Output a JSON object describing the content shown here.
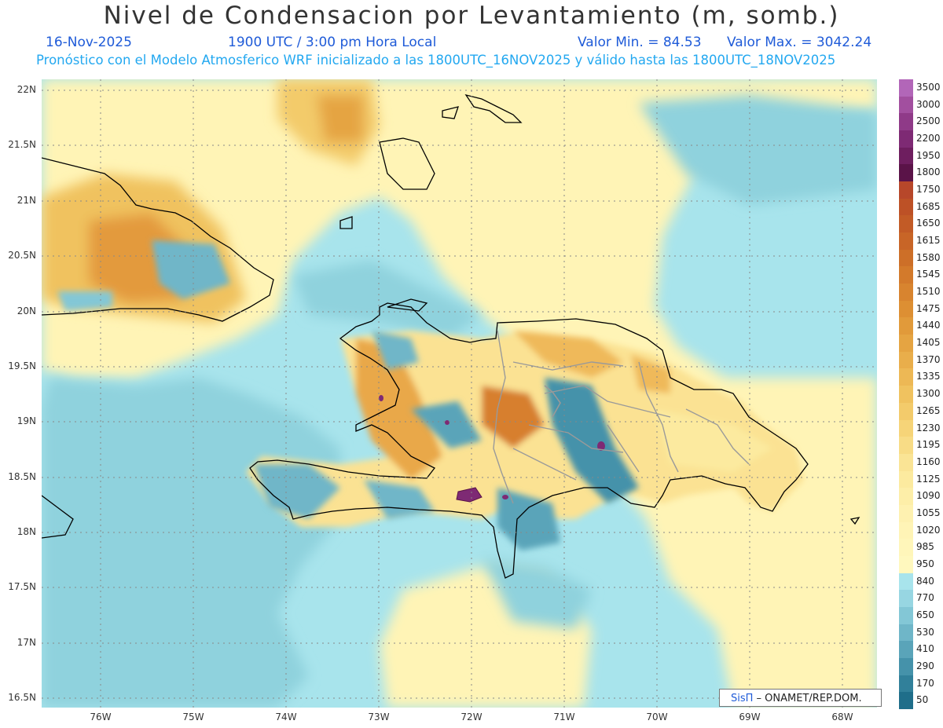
{
  "header": {
    "title": "Nivel de Condensacion por Levantamiento (m, somb.)",
    "date": "16-Nov-2025",
    "time": "1900 UTC / 3:00 pm Hora Local",
    "min": "Valor Min. = 84.53",
    "max": "Valor Max. = 3042.24",
    "forecast": "Pronóstico con el Modelo Atmosferico WRF inicializado a las 1800UTC_16NOV2025 y válido hasta las  1800UTC_18NOV2025"
  },
  "axes": {
    "lat_labels": [
      "22N",
      "21.5N",
      "21N",
      "20.5N",
      "20N",
      "19.5N",
      "19N",
      "18.5N",
      "18N",
      "17.5N",
      "17N",
      "16.5N"
    ],
    "lon_labels": [
      "76W",
      "75W",
      "74W",
      "73W",
      "72W",
      "71W",
      "70W",
      "69W",
      "68W"
    ]
  },
  "legend": {
    "levels": [
      "3500",
      "3000",
      "2500",
      "2200",
      "1950",
      "1800",
      "1750",
      "1685",
      "1650",
      "1615",
      "1580",
      "1545",
      "1510",
      "1475",
      "1440",
      "1405",
      "1370",
      "1335",
      "1300",
      "1265",
      "1230",
      "1195",
      "1160",
      "1125",
      "1090",
      "1055",
      "1020",
      "985",
      "950",
      "840",
      "770",
      "650",
      "530",
      "410",
      "290",
      "170",
      "50"
    ],
    "colors": [
      "#b266b8",
      "#a24f9f",
      "#8f3a88",
      "#7e2a74",
      "#6e1e5f",
      "#5a1348",
      "#b7472a",
      "#bd5126",
      "#c25b26",
      "#c86527",
      "#cd6f28",
      "#d37a2b",
      "#d8842f",
      "#dd8f33",
      "#e19a3a",
      "#e5a442",
      "#e9ae4b",
      "#edb855",
      "#f0c25f",
      "#f3cb6b",
      "#f6d478",
      "#f8dc86",
      "#fae495",
      "#fcea9f",
      "#fdeea8",
      "#fef1b0",
      "#fff4b6",
      "#fff6ba",
      "#fff8be",
      "#a8e4ec",
      "#97d6e2",
      "#83c7d6",
      "#6fb6c8",
      "#5aa4b9",
      "#4592aa",
      "#31809a",
      "#1f6e8a"
    ]
  },
  "credit": {
    "brand": "SisΠ",
    "text": " – ONAMET/REP.DOM."
  },
  "colors": {
    "sea_low": "#a8e4ec",
    "land_high": "#fff8be",
    "mid_orange": "#e39a3e"
  }
}
